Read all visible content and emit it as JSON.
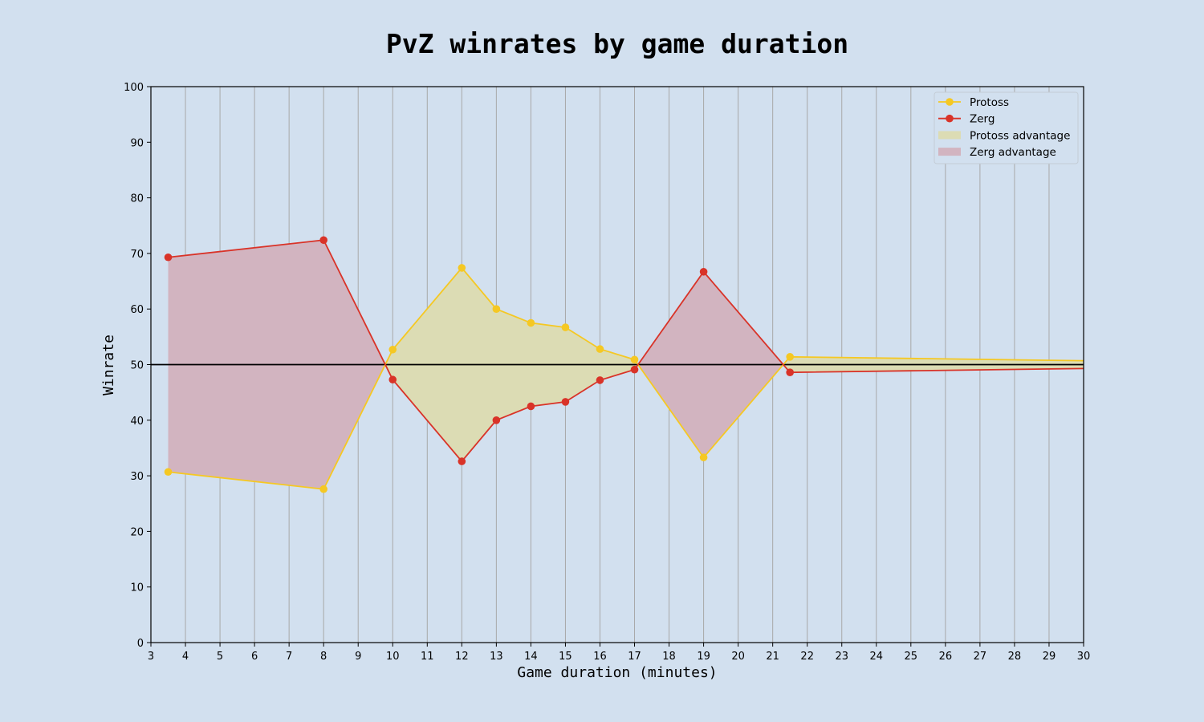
{
  "chart_data": {
    "type": "line",
    "title": "PvZ winrates by game duration",
    "xlabel": "Game duration (minutes)",
    "ylabel": "Winrate",
    "xlim": [
      3,
      30
    ],
    "ylim": [
      0,
      100
    ],
    "x_ticks": [
      3,
      4,
      5,
      6,
      7,
      8,
      9,
      10,
      11,
      12,
      13,
      14,
      15,
      16,
      17,
      18,
      19,
      20,
      21,
      22,
      23,
      24,
      25,
      26,
      27,
      28,
      29,
      30
    ],
    "y_ticks": [
      0,
      10,
      20,
      30,
      40,
      50,
      60,
      70,
      80,
      90,
      100
    ],
    "reference_line": 50,
    "grid": "vertical",
    "legend_position": "top-right",
    "x": [
      3.5,
      8,
      10,
      12,
      13,
      14,
      15,
      16,
      17,
      19,
      21.5,
      30
    ],
    "series": [
      {
        "name": "Protoss",
        "color": "#f5c823",
        "values": [
          30.7,
          27.6,
          52.7,
          67.4,
          60.0,
          57.5,
          56.7,
          52.8,
          50.9,
          33.3,
          51.4,
          50.7
        ],
        "markers": true
      },
      {
        "name": "Zerg",
        "color": "#d93328",
        "values": [
          69.3,
          72.4,
          47.3,
          32.6,
          40.0,
          42.5,
          43.3,
          47.2,
          49.1,
          66.7,
          48.6,
          49.3
        ],
        "markers": true
      }
    ],
    "fills": [
      {
        "name": "Protoss advantage",
        "color": "#dcdcb4"
      },
      {
        "name": "Zerg advantage",
        "color": "#d2b4c0"
      }
    ],
    "marker_count": 11
  }
}
